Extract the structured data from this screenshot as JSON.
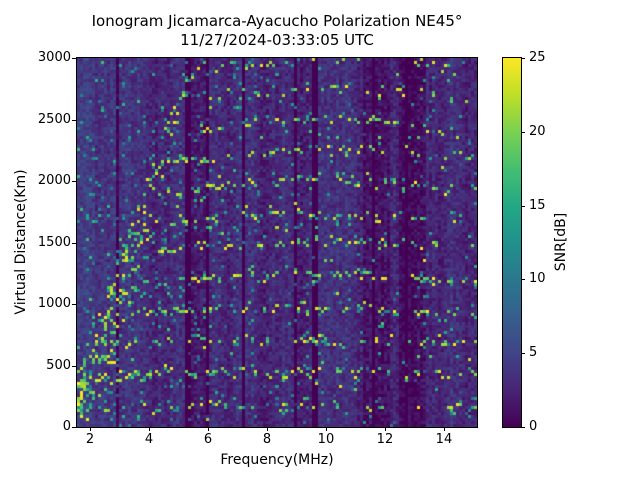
{
  "title": {
    "line1": "Ionogram Jicamarca-Ayacucho Polarization NE45°",
    "line2": "11/27/2024-03:33:05 UTC"
  },
  "axes": {
    "xlabel": "Frequency(MHz)",
    "ylabel": "Virtual Distance(Km)",
    "xlim": [
      1.56,
      15.12
    ],
    "ylim": [
      0,
      3000
    ],
    "xticks": [
      "2",
      "4",
      "6",
      "8",
      "10",
      "12",
      "14"
    ],
    "yticks": [
      "0",
      "500",
      "1000",
      "1500",
      "2000",
      "2500",
      "3000"
    ]
  },
  "colorbar": {
    "label": "SNR[dB]",
    "ticks": [
      "0",
      "5",
      "10",
      "15",
      "20",
      "25"
    ],
    "min": 0,
    "max": 25
  },
  "chart_data": {
    "type": "heatmap",
    "title": "Ionogram Jicamarca-Ayacucho Polarization NE45° 11/27/2024-03:33:05 UTC",
    "xlabel": "Frequency(MHz)",
    "ylabel": "Virtual Distance(Km)",
    "zlabel": "SNR[dB]",
    "x_range_mhz": [
      1.56,
      15.12
    ],
    "y_range_km": [
      0,
      3000
    ],
    "z_range_db": [
      0,
      25
    ],
    "colormap": "viridis",
    "colormap_stops": [
      "#440154",
      "#482475",
      "#414487",
      "#355f8d",
      "#2a788e",
      "#21918c",
      "#22a884",
      "#44bf70",
      "#7ad151",
      "#bddf26",
      "#fde725"
    ],
    "grid": {
      "cols": 133,
      "rows": 123
    },
    "seed": 42,
    "noise": {
      "base_db": 1.6,
      "cell_jitter_db": 3.0,
      "speckle_prob_left": 0.05,
      "speckle_prob_mid": 0.035,
      "speckle_prob_right": 0.02,
      "speckle_amp_db": 9
    },
    "stripes": [
      {
        "f0": 1.5,
        "f1": 2.15,
        "amp": 2.6
      },
      {
        "f0": 2.15,
        "f1": 3.1,
        "amp": 1.9
      },
      {
        "f0": 3.1,
        "f1": 5.3,
        "amp": 2.2
      },
      {
        "f0": 5.4,
        "f1": 6.0,
        "amp": 1.0
      },
      {
        "f0": 6.05,
        "f1": 7.2,
        "amp": 1.8
      },
      {
        "f0": 7.3,
        "f1": 9.0,
        "amp": 1.4
      },
      {
        "f0": 9.05,
        "f1": 9.6,
        "amp": 0.3
      },
      {
        "f0": 9.7,
        "f1": 10.4,
        "amp": 1.7
      },
      {
        "f0": 10.4,
        "f1": 11.2,
        "amp": 0.8
      },
      {
        "f0": 11.2,
        "f1": 12.2,
        "amp": -0.6
      },
      {
        "f0": 12.2,
        "f1": 12.5,
        "amp": 0.8
      },
      {
        "f0": 12.5,
        "f1": 13.4,
        "amp": -0.6
      },
      {
        "f0": 13.4,
        "f1": 15.2,
        "amp": 1.2
      }
    ],
    "interference_lines_mhz": [
      2.95,
      5.35,
      5.97,
      7.22,
      8.95,
      9.63,
      11.6,
      12.75
    ],
    "echo_traces": [
      {
        "km": 160,
        "strength": 0.55
      },
      {
        "km": 430,
        "strength": 0.95
      },
      {
        "km": 680,
        "strength": 0.9
      },
      {
        "km": 930,
        "strength": 0.85
      },
      {
        "km": 1180,
        "strength": 0.8
      },
      {
        "km": 1430,
        "strength": 0.8
      },
      {
        "km": 1660,
        "strength": 0.75
      },
      {
        "km": 1900,
        "strength": 0.8
      },
      {
        "km": 2140,
        "strength": 0.7
      },
      {
        "km": 2380,
        "strength": 0.65
      },
      {
        "km": 2620,
        "strength": 0.7
      },
      {
        "km": 2860,
        "strength": 0.6
      },
      {
        "km": 3080,
        "strength": 0.5
      }
    ]
  }
}
